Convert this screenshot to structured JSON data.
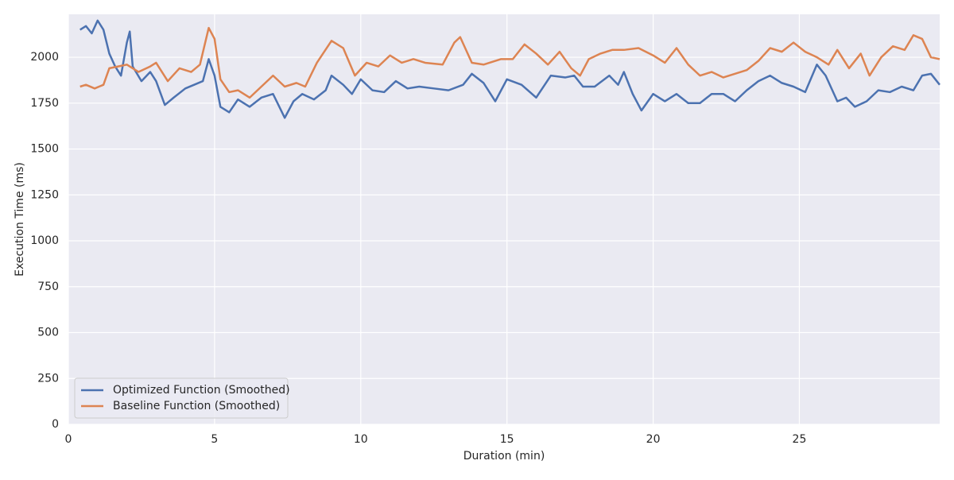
{
  "chart_data": {
    "type": "line",
    "xlabel": "Duration (min)",
    "ylabel": "Execution Time (ms)",
    "xlim": [
      0,
      29.8
    ],
    "ylim": [
      0,
      2234
    ],
    "xticks": [
      0,
      5,
      10,
      15,
      20,
      25
    ],
    "yticks": [
      0,
      250,
      500,
      750,
      1000,
      1250,
      1500,
      1750,
      2000
    ],
    "grid": true,
    "legend": "lower left",
    "series": [
      {
        "name": "Optimized Function (Smoothed)",
        "color": "#4c72b0",
        "x": [
          0.4,
          0.6,
          0.8,
          1.0,
          1.2,
          1.4,
          1.6,
          1.8,
          2.0,
          2.1,
          2.2,
          2.5,
          2.8,
          3.0,
          3.3,
          3.6,
          4.0,
          4.3,
          4.6,
          4.8,
          5.0,
          5.2,
          5.5,
          5.8,
          6.2,
          6.6,
          7.0,
          7.4,
          7.7,
          8.0,
          8.4,
          8.8,
          9.0,
          9.4,
          9.7,
          10.0,
          10.4,
          10.8,
          11.2,
          11.6,
          12.0,
          12.5,
          13.0,
          13.5,
          13.8,
          14.2,
          14.6,
          15.0,
          15.5,
          16.0,
          16.5,
          17.0,
          17.3,
          17.6,
          18.0,
          18.5,
          18.8,
          19.0,
          19.3,
          19.6,
          20.0,
          20.4,
          20.8,
          21.2,
          21.6,
          22.0,
          22.4,
          22.8,
          23.2,
          23.6,
          24.0,
          24.4,
          24.8,
          25.2,
          25.6,
          25.9,
          26.3,
          26.6,
          26.9,
          27.3,
          27.7,
          28.1,
          28.5,
          28.9,
          29.2,
          29.5,
          29.8
        ],
        "values": [
          2150,
          2170,
          2130,
          2200,
          2150,
          2020,
          1950,
          1900,
          2080,
          2140,
          1950,
          1870,
          1920,
          1870,
          1740,
          1780,
          1830,
          1850,
          1870,
          1990,
          1900,
          1730,
          1700,
          1770,
          1730,
          1780,
          1800,
          1670,
          1760,
          1800,
          1770,
          1820,
          1900,
          1850,
          1800,
          1880,
          1820,
          1810,
          1870,
          1830,
          1840,
          1830,
          1820,
          1850,
          1910,
          1860,
          1760,
          1880,
          1850,
          1780,
          1900,
          1890,
          1900,
          1840,
          1840,
          1900,
          1850,
          1920,
          1800,
          1710,
          1800,
          1760,
          1800,
          1750,
          1750,
          1800,
          1800,
          1760,
          1820,
          1870,
          1900,
          1860,
          1840,
          1810,
          1960,
          1900,
          1760,
          1780,
          1730,
          1760,
          1820,
          1810,
          1840,
          1820,
          1900,
          1910,
          1850
        ]
      },
      {
        "name": "Baseline Function (Smoothed)",
        "color": "#dd8452",
        "x": [
          0.4,
          0.6,
          0.9,
          1.2,
          1.4,
          1.7,
          2.0,
          2.4,
          2.8,
          3.0,
          3.4,
          3.8,
          4.2,
          4.5,
          4.8,
          5.0,
          5.2,
          5.5,
          5.8,
          6.2,
          6.6,
          7.0,
          7.4,
          7.8,
          8.1,
          8.5,
          9.0,
          9.4,
          9.8,
          10.2,
          10.6,
          11.0,
          11.4,
          11.8,
          12.2,
          12.8,
          13.2,
          13.4,
          13.8,
          14.2,
          14.8,
          15.2,
          15.6,
          16.0,
          16.4,
          16.8,
          17.2,
          17.5,
          17.8,
          18.2,
          18.6,
          19.0,
          19.5,
          20.0,
          20.4,
          20.8,
          21.2,
          21.6,
          22.0,
          22.4,
          22.8,
          23.2,
          23.6,
          24.0,
          24.4,
          24.8,
          25.2,
          25.6,
          26.0,
          26.3,
          26.7,
          27.1,
          27.4,
          27.8,
          28.2,
          28.6,
          28.9,
          29.2,
          29.5,
          29.8
        ],
        "values": [
          1840,
          1850,
          1830,
          1850,
          1940,
          1950,
          1960,
          1920,
          1950,
          1970,
          1870,
          1940,
          1920,
          1960,
          2160,
          2100,
          1880,
          1810,
          1820,
          1780,
          1840,
          1900,
          1840,
          1860,
          1840,
          1970,
          2090,
          2050,
          1900,
          1970,
          1950,
          2010,
          1970,
          1990,
          1970,
          1960,
          2080,
          2110,
          1970,
          1960,
          1990,
          1990,
          2070,
          2020,
          1960,
          2030,
          1940,
          1900,
          1990,
          2020,
          2040,
          2040,
          2050,
          2010,
          1970,
          2050,
          1960,
          1900,
          1920,
          1890,
          1910,
          1930,
          1980,
          2050,
          2030,
          2080,
          2030,
          2000,
          1960,
          2040,
          1940,
          2020,
          1900,
          2000,
          2060,
          2040,
          2120,
          2100,
          2000,
          1990
        ]
      }
    ]
  }
}
